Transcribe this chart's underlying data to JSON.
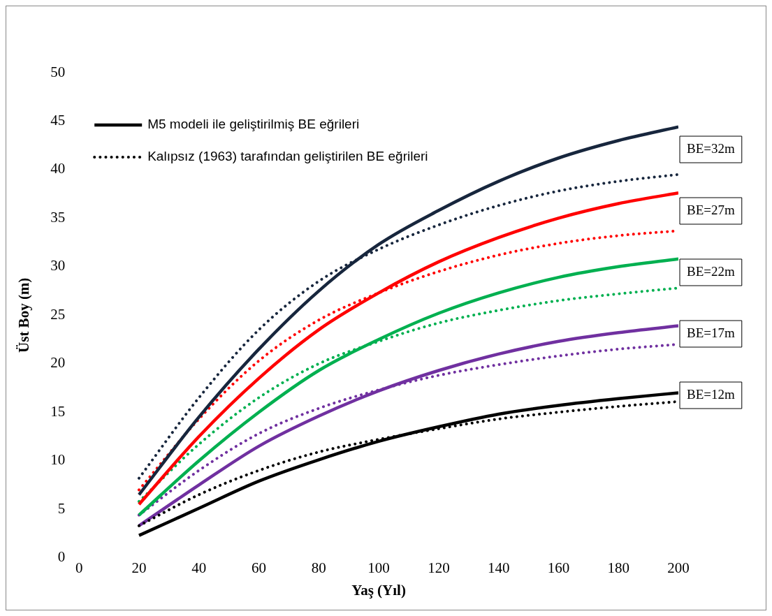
{
  "chart_data": {
    "type": "line",
    "xlabel": "Yaş (Yıl)",
    "ylabel": "Üst Boy (m)",
    "x": [
      20,
      40,
      60,
      80,
      100,
      120,
      140,
      160,
      180,
      200
    ],
    "xlim": [
      0,
      200
    ],
    "xticks": [
      0,
      20,
      40,
      60,
      80,
      100,
      120,
      140,
      160,
      180,
      200
    ],
    "ylim": [
      0,
      50
    ],
    "yticks": [
      0,
      5,
      10,
      15,
      20,
      25,
      30,
      35,
      40,
      45,
      50
    ],
    "legend": "top left",
    "marker": "none",
    "series": [
      {
        "name": "M5 modeli ile geliştirilmiş BE eğrileri",
        "color": "#000000",
        "line_style": "solid",
        "values": [
          2.3,
          5.1,
          7.9,
          10.1,
          12.0,
          13.5,
          14.8,
          15.7,
          16.4,
          17.0
        ]
      },
      {
        "name": "Kalıpsız (1963) tarafından geliştirilen BE eğrileri",
        "color": "#000000",
        "line_style": "dotted",
        "values": [
          3.3,
          6.5,
          9.0,
          10.9,
          12.2,
          13.3,
          14.3,
          15.0,
          15.6,
          16.1
        ]
      },
      {
        "color": "#17263d",
        "line_style": "solid",
        "values": [
          6.5,
          14.5,
          21.5,
          27.5,
          32.3,
          35.8,
          38.8,
          41.2,
          43.0,
          44.4
        ]
      },
      {
        "color": "#17263d",
        "line_style": "dotted",
        "values": [
          8.2,
          16.5,
          23.5,
          28.5,
          31.8,
          34.3,
          36.3,
          37.8,
          38.8,
          39.5
        ]
      },
      {
        "color": "#ff0000",
        "line_style": "solid",
        "values": [
          5.5,
          12.5,
          18.5,
          23.5,
          27.3,
          30.5,
          33.0,
          35.0,
          36.5,
          37.6
        ]
      },
      {
        "color": "#ff0000",
        "line_style": "dotted",
        "values": [
          7.0,
          14.3,
          20.3,
          24.5,
          27.3,
          29.5,
          31.2,
          32.4,
          33.2,
          33.7
        ]
      },
      {
        "color": "#00b050",
        "line_style": "solid",
        "values": [
          4.4,
          10.0,
          15.0,
          19.3,
          22.5,
          25.2,
          27.3,
          28.9,
          30.0,
          30.8
        ]
      },
      {
        "color": "#00b050",
        "line_style": "dotted",
        "values": [
          5.8,
          11.7,
          16.5,
          20.0,
          22.3,
          24.2,
          25.5,
          26.5,
          27.2,
          27.8
        ]
      },
      {
        "color": "#7030a0",
        "line_style": "solid",
        "values": [
          3.3,
          7.5,
          11.5,
          14.6,
          17.2,
          19.3,
          21.0,
          22.3,
          23.2,
          23.9
        ]
      },
      {
        "color": "#7030a0",
        "line_style": "dotted",
        "values": [
          4.4,
          9.0,
          12.8,
          15.4,
          17.3,
          18.8,
          19.9,
          20.8,
          21.5,
          22.0
        ]
      }
    ],
    "annotations": [
      "BE=32m",
      "BE=27m",
      "BE=22m",
      "BE=17m",
      "BE=12m"
    ]
  }
}
